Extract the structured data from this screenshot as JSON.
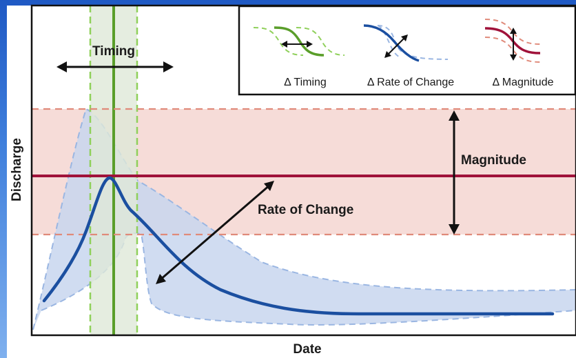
{
  "axes": {
    "x_label": "Date",
    "y_label": "Discharge"
  },
  "labels": {
    "timing": "Timing",
    "magnitude": "Magnitude",
    "rate_of_change": "Rate of Change"
  },
  "legend": {
    "timing": "Δ Timing",
    "rate_of_change": "Δ Rate of Change",
    "magnitude": "Δ Magnitude"
  },
  "colors": {
    "background_gradient_top": "#1f59c4",
    "background_gradient_bottom": "#7fb0ee",
    "timing_green": "#5a9e2a",
    "timing_green_light": "#8fd05a",
    "timing_band_fill": "#dfe8d8",
    "magnitude_red": "#a0123a",
    "magnitude_dashed": "#e08a7a",
    "magnitude_band_fill": "#f6dcd8",
    "hydrograph_blue": "#1b4fa0",
    "envelope_fill": "#c8d6ee",
    "envelope_dashed": "#9ab6e2"
  }
}
